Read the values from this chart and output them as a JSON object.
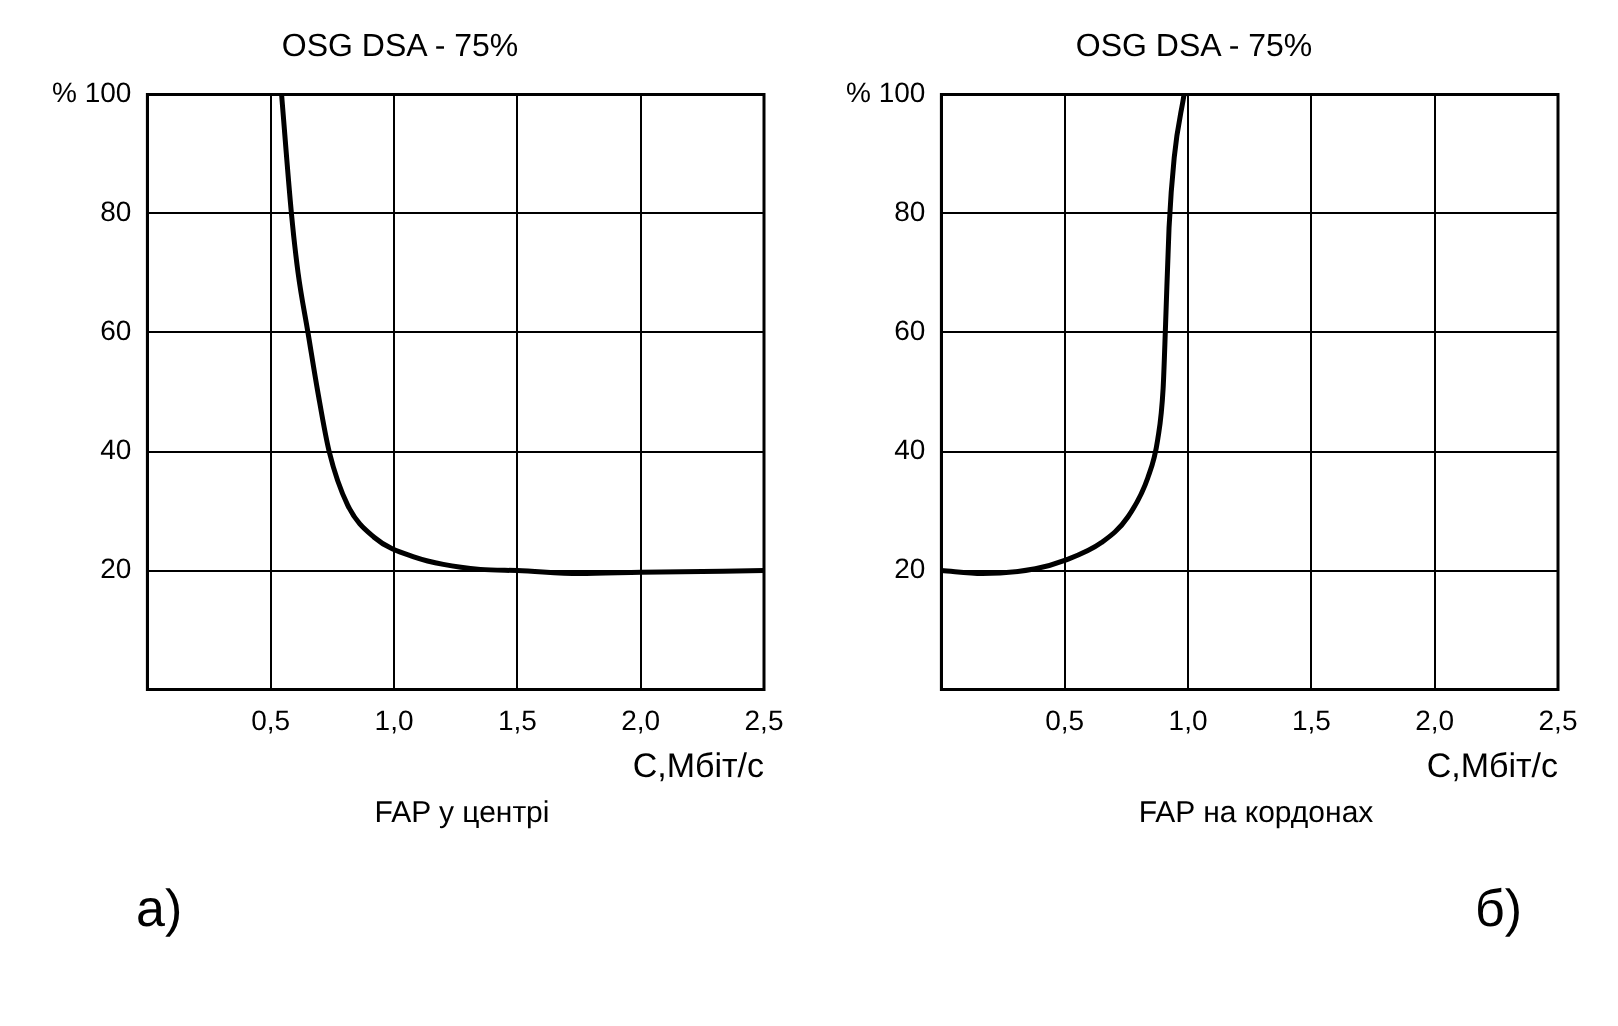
{
  "chart_data": [
    {
      "type": "line",
      "title": "OSG DSA - 75%",
      "xlabel": "C,Мбіт/c",
      "x": [
        0.544,
        0.584,
        0.611,
        0.651,
        0.691,
        0.737,
        0.812,
        0.919,
        1.08,
        1.35,
        1.5,
        1.75,
        2.0,
        2.5
      ],
      "series": [
        {
          "color": "#000000",
          "values": [
            100,
            80,
            70,
            60,
            50,
            40,
            31,
            25.6,
            22.3,
            20.2,
            20,
            19.5,
            19.7,
            20
          ]
        }
      ],
      "xlim": [
        0,
        2.5
      ],
      "xticks": [
        {
          "value": 0.5,
          "label": "0,5"
        },
        {
          "value": 1,
          "label": "1,0"
        },
        {
          "value": 1.5,
          "label": "1,5"
        },
        {
          "value": 2,
          "label": "2,0"
        },
        {
          "value": 2.5,
          "label": "2,5"
        }
      ],
      "ylim": [
        0,
        100
      ],
      "yticks": [
        20,
        40,
        60,
        80,
        {
          "value": 100,
          "label": "% 100"
        }
      ],
      "grid": true,
      "legend": false,
      "marker": "none",
      "line_style": "solid",
      "annotations": [
        "FAP у центрі",
        "а)"
      ]
    },
    {
      "type": "line",
      "title": "OSG DSA - 75%",
      "xlabel": "C,Мбіт/c",
      "x": [
        0,
        0.166,
        0.381,
        0.5,
        0.649,
        0.756,
        0.837,
        0.877,
        0.899,
        0.909,
        0.923,
        0.944,
        0.984
      ],
      "series": [
        {
          "color": "#000000",
          "values": [
            20,
            19.5,
            20.3,
            21.7,
            24.7,
            29,
            35.6,
            42,
            50.6,
            61.4,
            77.6,
            89.4,
            100
          ]
        }
      ],
      "xlim": [
        0,
        2.5
      ],
      "xticks": [
        {
          "value": 0.5,
          "label": "0,5"
        },
        {
          "value": 1,
          "label": "1,0"
        },
        {
          "value": 1.5,
          "label": "1,5"
        },
        {
          "value": 2,
          "label": "2,0"
        },
        {
          "value": 2.5,
          "label": "2,5"
        }
      ],
      "ylim": [
        0,
        100
      ],
      "yticks": [
        20,
        40,
        60,
        80,
        {
          "value": 100,
          "label": "% 100"
        }
      ],
      "grid": true,
      "legend": false,
      "marker": "none",
      "line_style": "solid",
      "annotations": [
        "FAP на кордонах",
        "б)"
      ]
    }
  ]
}
